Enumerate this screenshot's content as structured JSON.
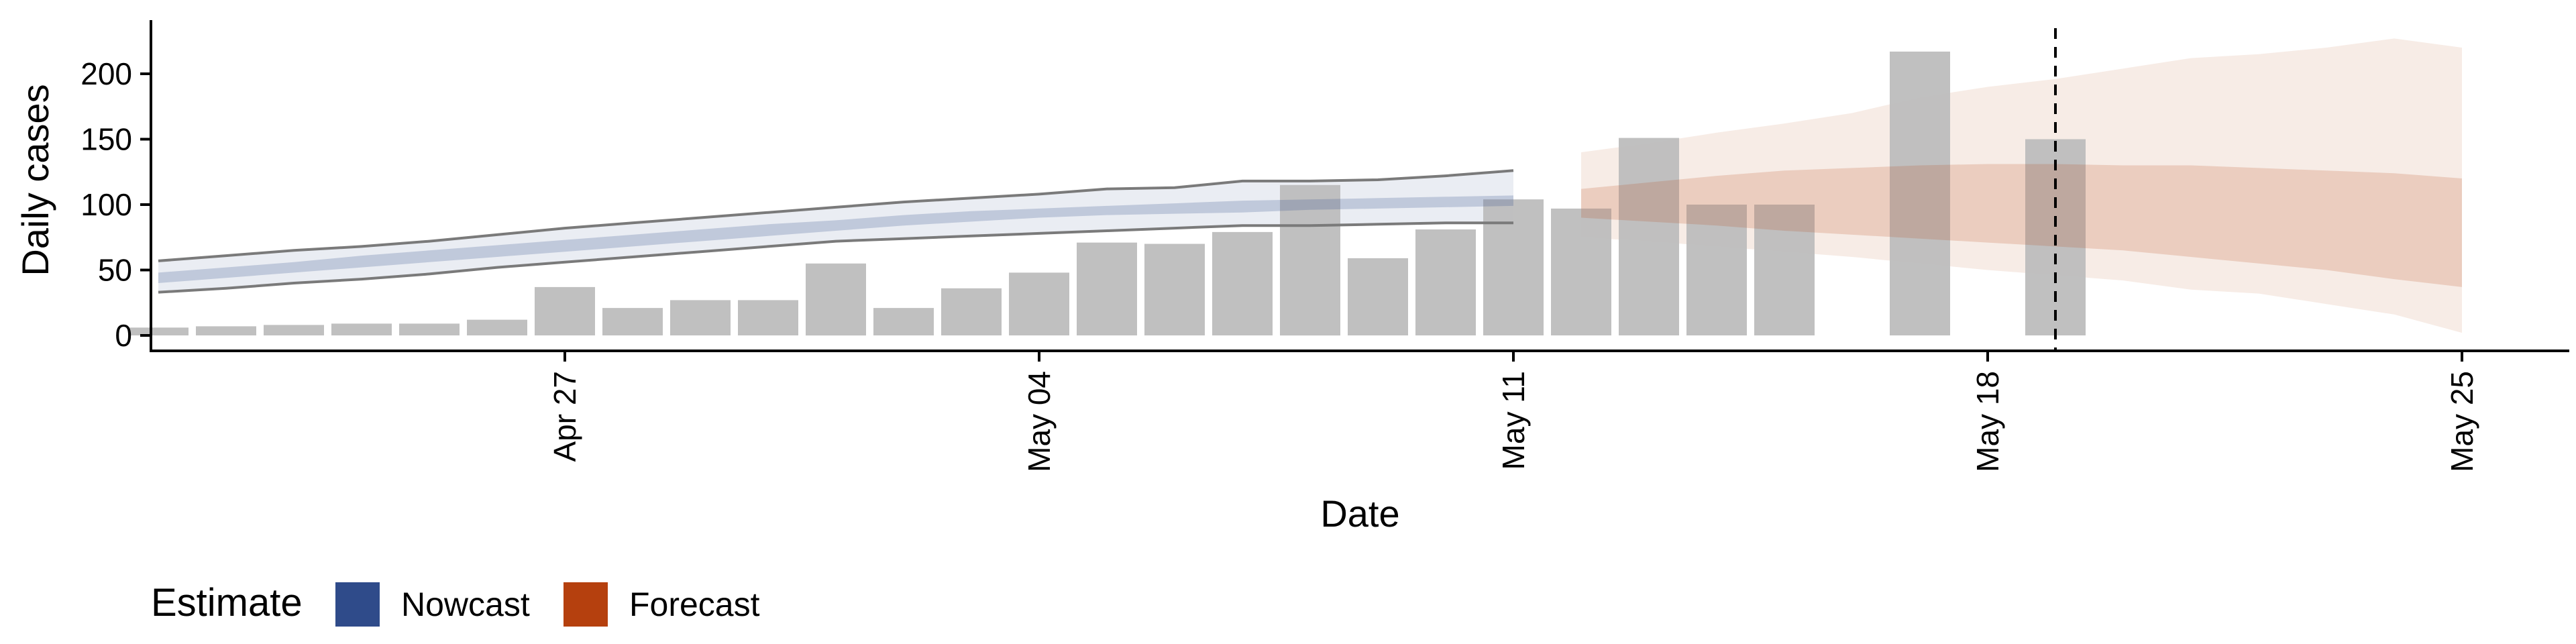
{
  "chart_data": {
    "type": "bar",
    "xlabel": "Date",
    "ylabel": "Daily cases",
    "xlim": [
      "2020-04-20",
      "2020-05-26"
    ],
    "ylim": [
      -10,
      240
    ],
    "x_ticks": [
      "Apr 27",
      "May 04",
      "May 11",
      "May 18",
      "May 25"
    ],
    "x_tick_dates": [
      "2020-04-27",
      "2020-05-04",
      "2020-05-11",
      "2020-05-18",
      "2020-05-25"
    ],
    "y_ticks": [
      "0",
      "50",
      "100",
      "150",
      "200"
    ],
    "y_tick_values": [
      0,
      50,
      100,
      150,
      200
    ],
    "grid": false,
    "vline_date": "2020-05-19",
    "bar_color": "#bdbdbd",
    "reported_cases": {
      "dates": [
        "2020-04-21",
        "2020-04-22",
        "2020-04-23",
        "2020-04-24",
        "2020-04-25",
        "2020-04-26",
        "2020-04-27",
        "2020-04-28",
        "2020-04-29",
        "2020-04-30",
        "2020-05-01",
        "2020-05-02",
        "2020-05-03",
        "2020-05-04",
        "2020-05-05",
        "2020-05-06",
        "2020-05-07",
        "2020-05-08",
        "2020-05-09",
        "2020-05-10",
        "2020-05-11",
        "2020-05-12",
        "2020-05-13",
        "2020-05-14",
        "2020-05-15",
        "2020-05-17",
        "2020-05-19"
      ],
      "values": [
        6,
        7,
        8,
        9,
        9,
        12,
        37,
        21,
        27,
        27,
        55,
        21,
        36,
        48,
        71,
        70,
        79,
        115,
        59,
        81,
        104,
        97,
        151,
        100,
        100,
        217,
        150
      ]
    },
    "series": [
      {
        "name": "Nowcast",
        "color": "#2f4b8a",
        "dates": [
          "2020-04-21",
          "2020-04-22",
          "2020-04-23",
          "2020-04-24",
          "2020-04-25",
          "2020-04-26",
          "2020-04-27",
          "2020-04-28",
          "2020-04-29",
          "2020-04-30",
          "2020-05-01",
          "2020-05-02",
          "2020-05-03",
          "2020-05-04",
          "2020-05-05",
          "2020-05-06",
          "2020-05-07",
          "2020-05-08",
          "2020-05-09",
          "2020-05-10",
          "2020-05-11"
        ],
        "lower_90": [
          33,
          36,
          40,
          43,
          47,
          52,
          56,
          60,
          64,
          68,
          72,
          74,
          76,
          78,
          80,
          82,
          84,
          84,
          85,
          86,
          86
        ],
        "lower_50": [
          40,
          44,
          48,
          52,
          56,
          60,
          64,
          68,
          72,
          76,
          80,
          84,
          87,
          90,
          92,
          93,
          94,
          96,
          97,
          98,
          99
        ],
        "upper_50": [
          48,
          52,
          56,
          61,
          65,
          69,
          73,
          77,
          81,
          85,
          88,
          92,
          95,
          97,
          99,
          101,
          103,
          104,
          105,
          106,
          107
        ],
        "upper_90": [
          57,
          61,
          65,
          68,
          72,
          77,
          82,
          86,
          90,
          94,
          98,
          102,
          105,
          108,
          112,
          113,
          118,
          118,
          119,
          122,
          126
        ]
      },
      {
        "name": "Forecast",
        "color": "#b5400e",
        "dates": [
          "2020-05-12",
          "2020-05-13",
          "2020-05-14",
          "2020-05-15",
          "2020-05-16",
          "2020-05-17",
          "2020-05-18",
          "2020-05-19",
          "2020-05-20",
          "2020-05-21",
          "2020-05-22",
          "2020-05-23",
          "2020-05-24",
          "2020-05-25"
        ],
        "lower_90": [
          75,
          72,
          68,
          64,
          60,
          55,
          50,
          46,
          42,
          35,
          32,
          24,
          16,
          2
        ],
        "lower_50": [
          90,
          87,
          84,
          80,
          77,
          74,
          71,
          68,
          65,
          60,
          55,
          50,
          43,
          37
        ],
        "upper_50": [
          112,
          117,
          122,
          126,
          128,
          130,
          131,
          131,
          130,
          130,
          128,
          126,
          124,
          120
        ],
        "upper_90": [
          140,
          147,
          155,
          162,
          170,
          182,
          190,
          196,
          204,
          212,
          215,
          220,
          227,
          220
        ]
      }
    ],
    "legend": {
      "title": "Estimate",
      "position": "bottom-left",
      "items": [
        {
          "label": "Nowcast",
          "color": "#2f4b8a"
        },
        {
          "label": "Forecast",
          "color": "#b5400e"
        }
      ]
    }
  }
}
